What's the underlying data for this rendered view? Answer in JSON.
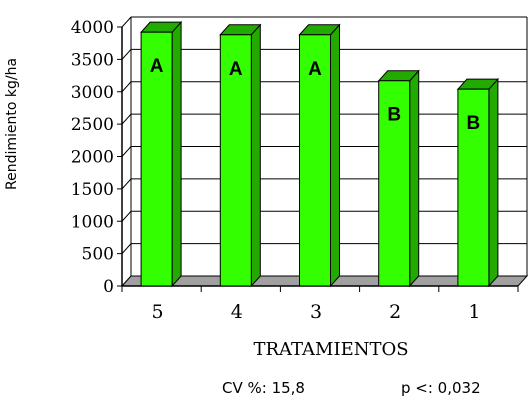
{
  "chart_data": {
    "type": "bar",
    "ylabel": "Rendimiento kg/ha",
    "xlabel": "TRATAMIENTOS",
    "categories": [
      "5",
      "4",
      "3",
      "2",
      "1"
    ],
    "values": [
      3920,
      3880,
      3880,
      3170,
      3040
    ],
    "group_labels": [
      "A",
      "A",
      "A",
      "B",
      "B"
    ],
    "ylim": [
      0,
      4000
    ],
    "yticks": [
      0,
      500,
      1000,
      1500,
      2000,
      2500,
      3000,
      3500,
      4000
    ],
    "grid": true,
    "legend": false,
    "bar_color": "#33ff00",
    "bar_side_color": "#22aa00",
    "floor_color": "#a0a0a0"
  },
  "footer": {
    "cv": "CV %: 15,8",
    "p": "p <: 0,032"
  }
}
